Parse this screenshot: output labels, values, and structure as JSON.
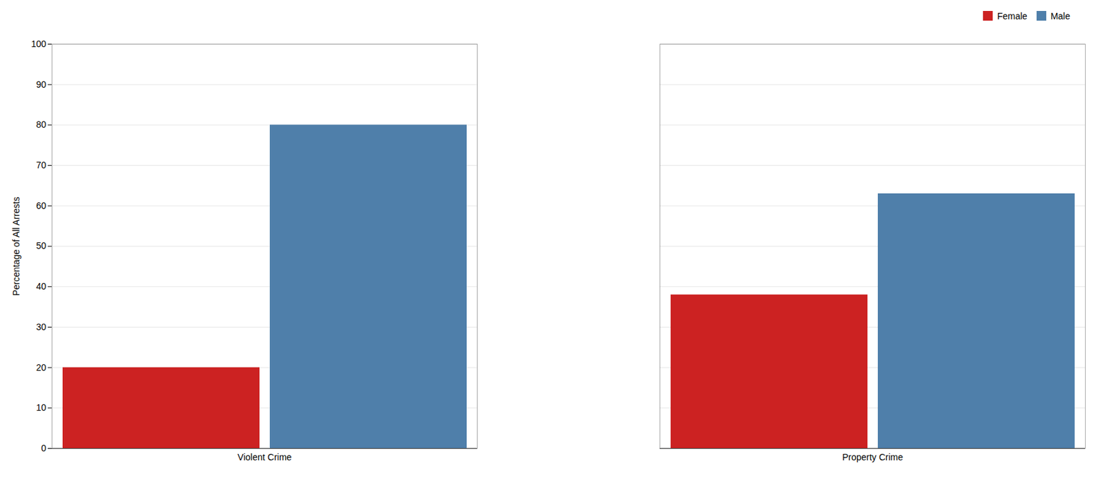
{
  "chart_data": {
    "type": "bar",
    "categories": [
      "Violent Crime",
      "Property Crime"
    ],
    "series": [
      {
        "name": "Female",
        "color": "#cc2222",
        "values": [
          20,
          38
        ]
      },
      {
        "name": "Male",
        "color": "#4f7faa",
        "values": [
          80,
          63
        ]
      }
    ],
    "ylabel": "Percentage of All Arrests",
    "ylim": [
      0,
      100
    ],
    "yticks": [
      0,
      10,
      20,
      30,
      40,
      50,
      60,
      70,
      80,
      90,
      100
    ],
    "grid": true,
    "legend": "upper right"
  }
}
